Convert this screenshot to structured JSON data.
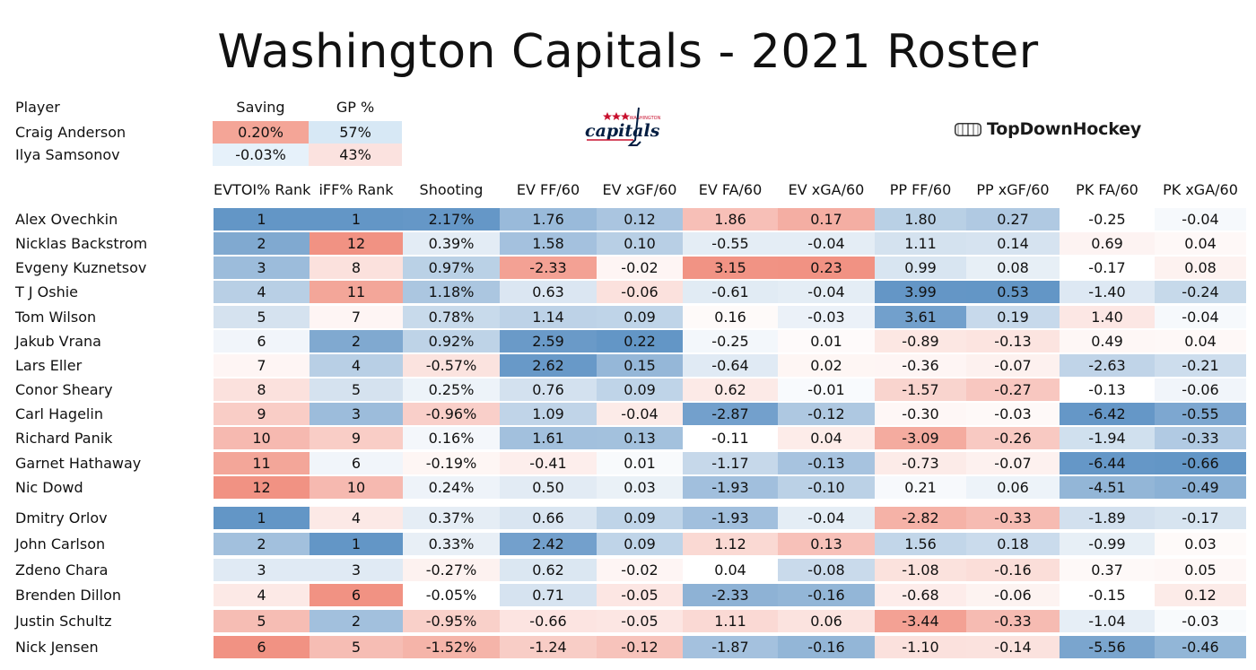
{
  "title": "Washington Capitals - 2021 Roster",
  "goalie_table": {
    "headers": {
      "player": "Player",
      "saving": "Saving",
      "gp": "GP %"
    },
    "rows": [
      {
        "name": "Craig Anderson",
        "saving": "0.20%",
        "gp": "57%"
      },
      {
        "name": "Ilya Samsonov",
        "saving": "-0.03%",
        "gp": "43%"
      }
    ]
  },
  "logos": {
    "capitals_wordmark": "capitals",
    "capitals_small": "WASHINGTON",
    "topdownhockey": "TopDownHockey",
    "capitals_icon": "capitals-logo-icon",
    "rink_icon": "rink-icon"
  },
  "colors": {
    "blue_strong": "#5b90c3",
    "red_strong": "#f08c7c",
    "neutral": "#ffffff",
    "capitals_red": "#c8102e",
    "capitals_navy": "#041e42"
  },
  "chart_data": {
    "type": "table",
    "title": "Washington Capitals - 2021 Roster",
    "columns": [
      "EVTOI% Rank",
      "iFF% Rank",
      "Shooting",
      "EV FF/60",
      "EV xGF/60",
      "EV FA/60",
      "EV xGA/60",
      "PP FF/60",
      "PP xGF/60",
      "PK FA/60",
      "PK xGA/60"
    ],
    "forwards": [
      {
        "player": "Alex Ovechkin",
        "values": [
          "1",
          "1",
          "2.17%",
          "1.76",
          "0.12",
          "1.86",
          "0.17",
          "1.80",
          "0.27",
          "-0.25",
          "-0.04"
        ]
      },
      {
        "player": "Nicklas Backstrom",
        "values": [
          "2",
          "12",
          "0.39%",
          "1.58",
          "0.10",
          "-0.55",
          "-0.04",
          "1.11",
          "0.14",
          "0.69",
          "0.04"
        ]
      },
      {
        "player": "Evgeny Kuznetsov",
        "values": [
          "3",
          "8",
          "0.97%",
          "-2.33",
          "-0.02",
          "3.15",
          "0.23",
          "0.99",
          "0.08",
          "-0.17",
          "0.08"
        ]
      },
      {
        "player": "T J  Oshie",
        "values": [
          "4",
          "11",
          "1.18%",
          "0.63",
          "-0.06",
          "-0.61",
          "-0.04",
          "3.99",
          "0.53",
          "-1.40",
          "-0.24"
        ]
      },
      {
        "player": "Tom Wilson",
        "values": [
          "5",
          "7",
          "0.78%",
          "1.14",
          "0.09",
          "0.16",
          "-0.03",
          "3.61",
          "0.19",
          "1.40",
          "-0.04"
        ]
      },
      {
        "player": "Jakub Vrana",
        "values": [
          "6",
          "2",
          "0.92%",
          "2.59",
          "0.22",
          "-0.25",
          "0.01",
          "-0.89",
          "-0.13",
          "0.49",
          "0.04"
        ]
      },
      {
        "player": "Lars Eller",
        "values": [
          "7",
          "4",
          "-0.57%",
          "2.62",
          "0.15",
          "-0.64",
          "0.02",
          "-0.36",
          "-0.07",
          "-2.63",
          "-0.21"
        ]
      },
      {
        "player": "Conor Sheary",
        "values": [
          "8",
          "5",
          "0.25%",
          "0.76",
          "0.09",
          "0.62",
          "-0.01",
          "-1.57",
          "-0.27",
          "-0.13",
          "-0.06"
        ]
      },
      {
        "player": "Carl Hagelin",
        "values": [
          "9",
          "3",
          "-0.96%",
          "1.09",
          "-0.04",
          "-2.87",
          "-0.12",
          "-0.30",
          "-0.03",
          "-6.42",
          "-0.55"
        ]
      },
      {
        "player": "Richard Panik",
        "values": [
          "10",
          "9",
          "0.16%",
          "1.61",
          "0.13",
          "-0.11",
          "0.04",
          "-3.09",
          "-0.26",
          "-1.94",
          "-0.33"
        ]
      },
      {
        "player": "Garnet Hathaway",
        "values": [
          "11",
          "6",
          "-0.19%",
          "-0.41",
          "0.01",
          "-1.17",
          "-0.13",
          "-0.73",
          "-0.07",
          "-6.44",
          "-0.66"
        ]
      },
      {
        "player": "Nic Dowd",
        "values": [
          "12",
          "10",
          "0.24%",
          "0.50",
          "0.03",
          "-1.93",
          "-0.10",
          "0.21",
          "0.06",
          "-4.51",
          "-0.49"
        ]
      }
    ],
    "defense": [
      {
        "player": "Dmitry Orlov",
        "values": [
          "1",
          "4",
          "0.37%",
          "0.66",
          "0.09",
          "-1.93",
          "-0.04",
          "-2.82",
          "-0.33",
          "-1.89",
          "-0.17"
        ]
      },
      {
        "player": "John Carlson",
        "values": [
          "2",
          "1",
          "0.33%",
          "2.42",
          "0.09",
          "1.12",
          "0.13",
          "1.56",
          "0.18",
          "-0.99",
          "0.03"
        ]
      },
      {
        "player": "Zdeno Chara",
        "values": [
          "3",
          "3",
          "-0.27%",
          "0.62",
          "-0.02",
          "0.04",
          "-0.08",
          "-1.08",
          "-0.16",
          "0.37",
          "0.05"
        ]
      },
      {
        "player": "Brenden Dillon",
        "values": [
          "4",
          "6",
          "-0.05%",
          "0.71",
          "-0.05",
          "-2.33",
          "-0.16",
          "-0.68",
          "-0.06",
          "-0.15",
          "0.12"
        ]
      },
      {
        "player": "Justin Schultz",
        "values": [
          "5",
          "2",
          "-0.95%",
          "-0.66",
          "-0.05",
          "1.11",
          "0.06",
          "-3.44",
          "-0.33",
          "-1.04",
          "-0.03"
        ]
      },
      {
        "player": "Nick Jensen",
        "values": [
          "6",
          "5",
          "-1.52%",
          "-1.24",
          "-0.12",
          "-1.87",
          "-0.16",
          "-1.10",
          "-0.14",
          "-5.56",
          "-0.46"
        ]
      }
    ]
  }
}
